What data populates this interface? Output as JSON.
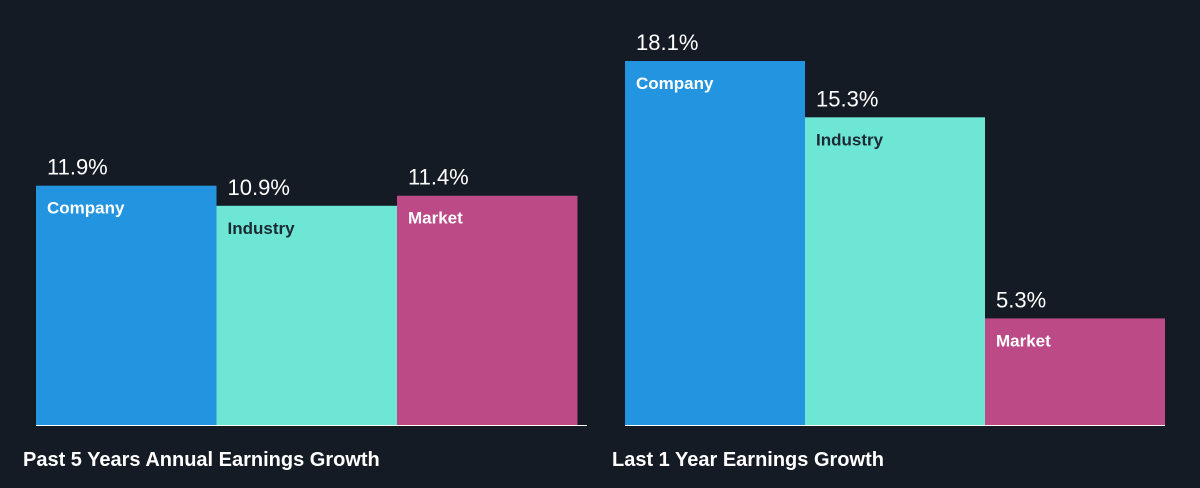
{
  "colors": {
    "background": "#151b24",
    "company": "#2394e0",
    "industry": "#6ee6d6",
    "market": "#bb4a87",
    "baseline": "#ffffff",
    "label_on_dark": "#ffffff",
    "label_on_light": "#1c2a33"
  },
  "chart_data": [
    {
      "type": "bar",
      "title": "Past 5 Years Annual Earnings Growth",
      "categories": [
        "Company",
        "Industry",
        "Market"
      ],
      "values": [
        11.9,
        10.9,
        11.4
      ],
      "value_labels": [
        "11.9%",
        "10.9%",
        "11.4%"
      ],
      "unit": "%",
      "ylim": [
        0,
        18.1
      ],
      "grid": false,
      "legend": "none"
    },
    {
      "type": "bar",
      "title": "Last 1 Year Earnings Growth",
      "categories": [
        "Company",
        "Industry",
        "Market"
      ],
      "values": [
        18.1,
        15.3,
        5.3
      ],
      "value_labels": [
        "18.1%",
        "15.3%",
        "5.3%"
      ],
      "unit": "%",
      "ylim": [
        0,
        18.1
      ],
      "grid": false,
      "legend": "none"
    }
  ]
}
